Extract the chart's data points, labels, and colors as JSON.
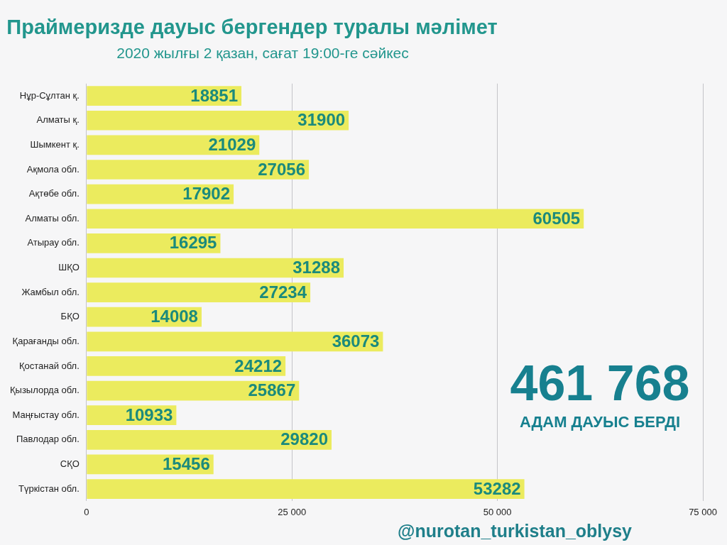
{
  "chart_data": {
    "type": "bar",
    "orientation": "horizontal",
    "title": "Праймеризде дауыс бергендер туралы мәлімет",
    "subtitle": "2020 жылғы  2 қазан, сағат 19:00-ге сәйкес",
    "categories": [
      "Нұр-Сұлтан қ.",
      "Алматы қ.",
      "Шымкент қ.",
      "Ақмола обл.",
      "Ақтөбе обл.",
      "Алматы обл.",
      "Атырау обл.",
      "ШҚО",
      "Жамбыл обл.",
      "БҚО",
      "Қарағанды обл.",
      "Қостанай обл.",
      "Қызылорда обл.",
      "Маңғыстау обл.",
      "Павлодар обл.",
      "СҚО",
      "Түркістан обл."
    ],
    "values": [
      18851,
      31900,
      21029,
      27056,
      17902,
      60505,
      16295,
      31288,
      27234,
      14008,
      36073,
      24212,
      25867,
      10933,
      29820,
      15456,
      53282
    ],
    "color": "#ebeb5e",
    "xlim": [
      0,
      75000
    ],
    "xticks": [
      0,
      {
        "value": 25000,
        "label": "25 000"
      },
      {
        "value": 50000,
        "label": "50 000"
      },
      {
        "value": 75000,
        "label": "75 000"
      }
    ],
    "grid": "x",
    "data_labels": true,
    "annotations": [
      "461 768",
      "АДАМ ДАУЫС БЕРДІ",
      "@nurotan_turkistan_oblysy"
    ]
  }
}
